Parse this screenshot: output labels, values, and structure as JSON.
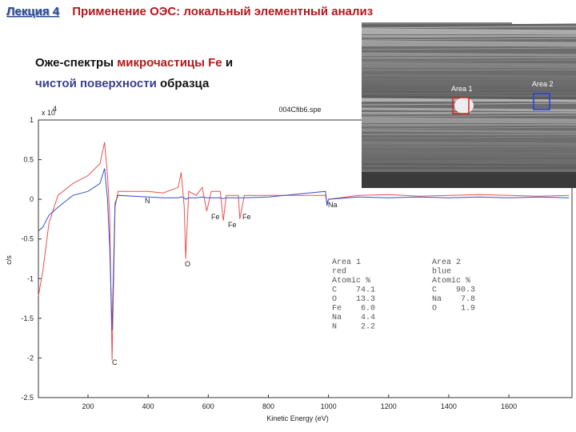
{
  "header": {
    "lecture": "Лекция 4",
    "title": "Применение ОЭС: локальный элементный анализ"
  },
  "subtitle": {
    "line1": [
      "Оже-спектры",
      "микрочастицы Fe",
      "и"
    ],
    "line2": [
      "чистой поверхности",
      "образца"
    ]
  },
  "sem_image": {
    "labels": [
      "Area 1",
      "Area 2"
    ]
  },
  "chart_data": {
    "type": "line",
    "title": "004Cfib6.spe",
    "x_label": "Kinetic Energy (eV)",
    "y_label": "c/s",
    "y_multiplier": {
      "base": "x 10",
      "exponent": "4"
    },
    "x": [
      35,
      50,
      70,
      100,
      150,
      200,
      240,
      255,
      265,
      272,
      280,
      290,
      300,
      400,
      450,
      500,
      510,
      520,
      525,
      535,
      560,
      580,
      595,
      610,
      640,
      650,
      660,
      700,
      705,
      720,
      800,
      990,
      995,
      1000,
      1100,
      1200,
      1300,
      1400,
      1500,
      1600,
      1700,
      1800
    ],
    "series": [
      {
        "color": "#e8524f",
        "values": [
          -1.22,
          -0.9,
          -0.3,
          0.05,
          0.2,
          0.3,
          0.45,
          0.72,
          0.3,
          -0.2,
          -2.03,
          -0.1,
          0.1,
          0.1,
          0.08,
          0.15,
          0.34,
          -0.1,
          -0.75,
          0.1,
          0.05,
          0.15,
          -0.15,
          0.1,
          0.1,
          -0.27,
          0.05,
          0.05,
          -0.25,
          0.05,
          0.05,
          0.05,
          -0.05,
          0.0,
          0.05,
          0.06,
          0.04,
          0.05,
          0.06,
          0.05,
          0.04,
          0.05
        ]
      },
      {
        "color": "#3a4fc4",
        "values": [
          -0.4,
          -0.35,
          -0.2,
          -0.1,
          0.05,
          0.1,
          0.2,
          0.39,
          0.0,
          -0.6,
          -1.65,
          -0.05,
          0.05,
          0.03,
          0.02,
          0.02,
          0.03,
          0.02,
          0.0,
          0.02,
          0.02,
          0.03,
          0.02,
          0.02,
          0.02,
          0.01,
          0.02,
          0.02,
          0.02,
          0.02,
          0.03,
          0.1,
          -0.08,
          0.0,
          0.03,
          0.02,
          0.03,
          0.02,
          0.03,
          0.02,
          0.03,
          0.02
        ]
      }
    ],
    "xlim": [
      35,
      1810
    ],
    "ylim": [
      -2.5,
      1
    ],
    "xticks": [
      200,
      400,
      600,
      800,
      1000,
      1200,
      1400,
      1600
    ],
    "yticks": [
      1,
      0.5,
      0,
      -0.5,
      -1,
      -1.5,
      -2,
      -2.5
    ],
    "grid": false,
    "annotations": [
      "N",
      "Fe",
      "Fe",
      "Fe",
      "Na",
      "O",
      "C"
    ],
    "area_tables": [
      [
        "Area 1",
        "red",
        "Atomic %",
        "C    74.1",
        "O    13.3",
        "Fe    6.0",
        "Na    4.4",
        "N     2.2"
      ],
      [
        "Area 2",
        "blue",
        "Atomic %",
        "C    90.3",
        "Na    7.8",
        "O     1.9"
      ]
    ]
  }
}
